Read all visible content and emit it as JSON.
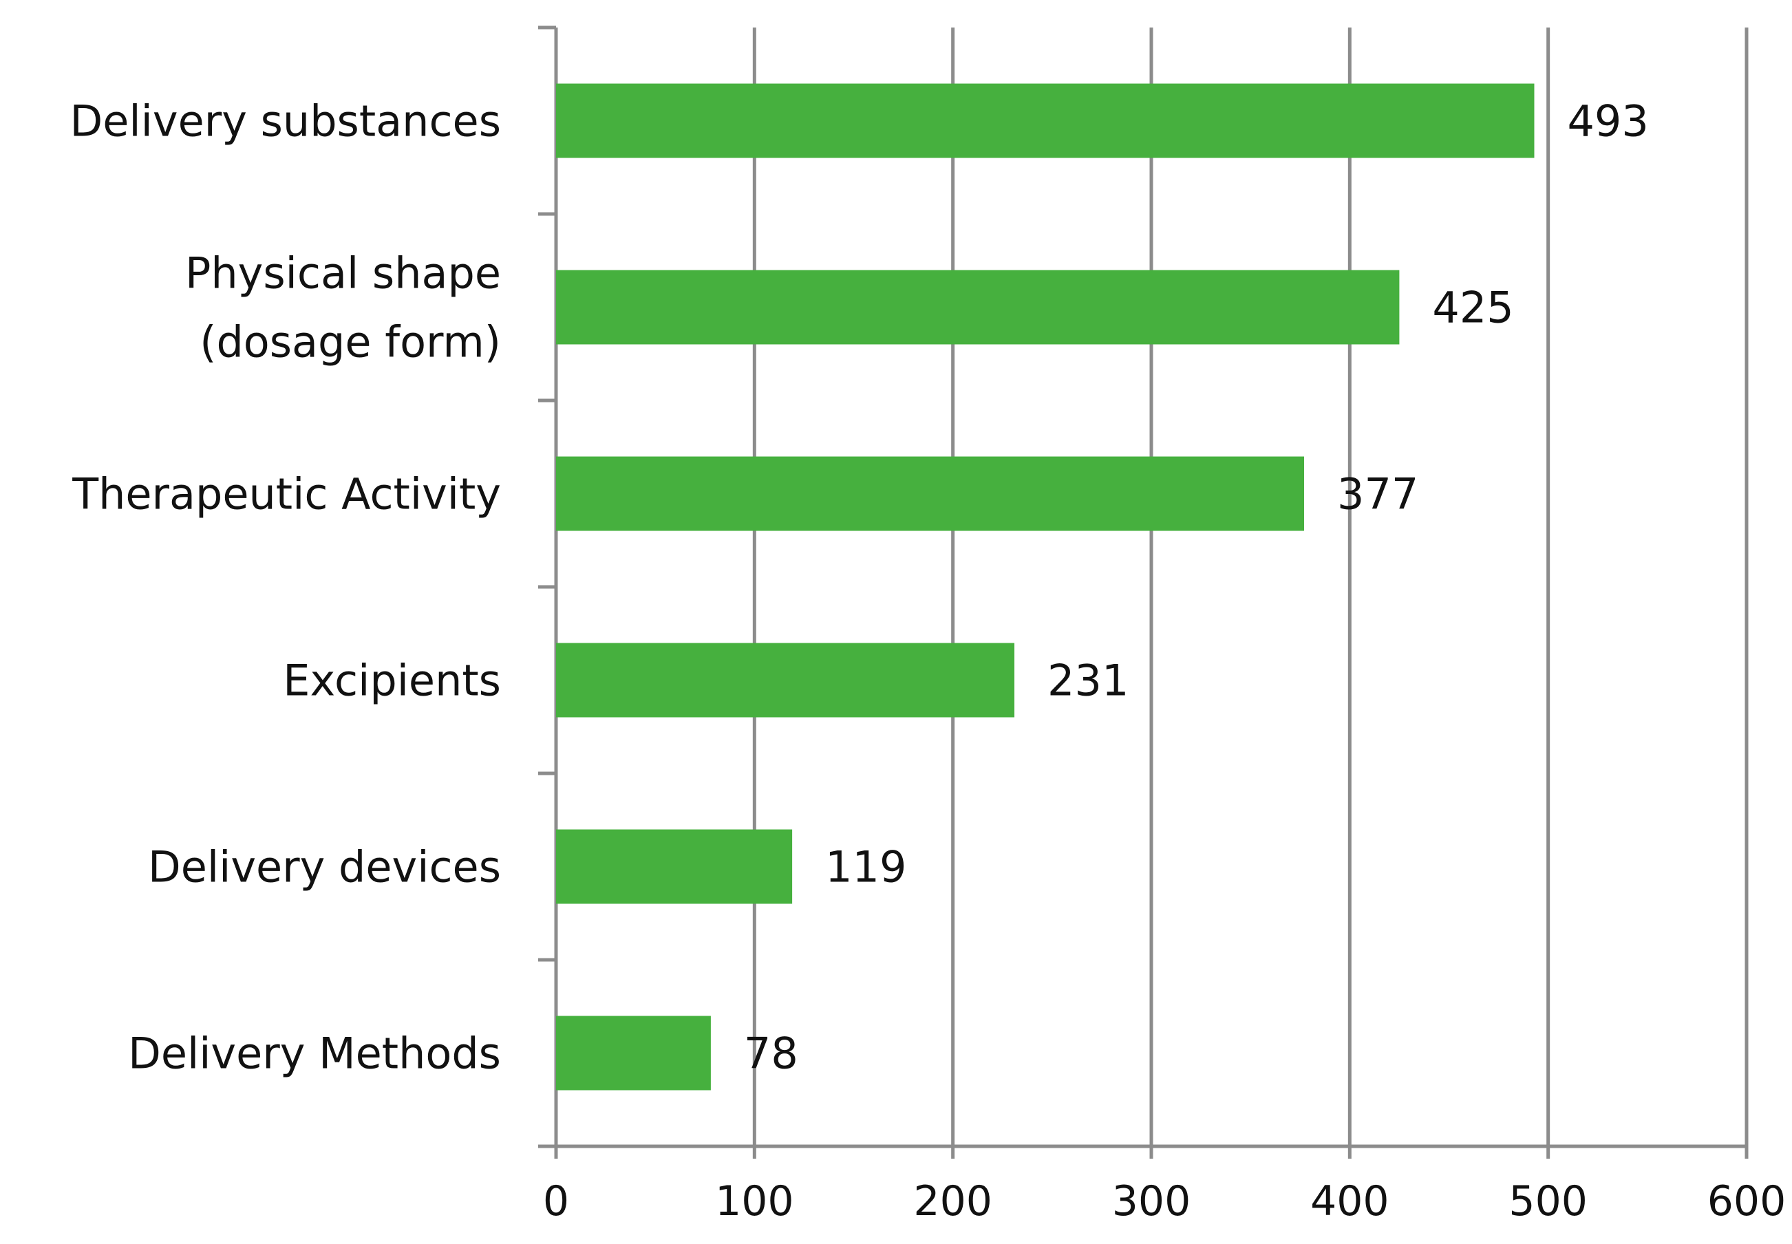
{
  "chart_data": {
    "type": "bar",
    "orientation": "horizontal",
    "categories": [
      [
        "Delivery substances"
      ],
      [
        "Physical shape",
        "(dosage form)"
      ],
      [
        "Therapeutic Activity"
      ],
      [
        "Excipients"
      ],
      [
        "Delivery devices"
      ],
      [
        "Delivery Methods"
      ]
    ],
    "values": [
      493,
      425,
      377,
      231,
      119,
      78
    ],
    "value_labels": [
      "493",
      "425",
      "377",
      "231",
      "119",
      "78"
    ],
    "x_ticks": [
      "0",
      "100",
      "200",
      "300",
      "400",
      "500",
      "600"
    ],
    "xlim": [
      0,
      600
    ],
    "title": "",
    "xlabel": "",
    "ylabel": "",
    "grid": "vertical",
    "legend": "none",
    "colors": {
      "bar": "#46b03e",
      "grid": "#8c8c8c",
      "axis": "#8c8c8c",
      "text": "#111111"
    }
  }
}
